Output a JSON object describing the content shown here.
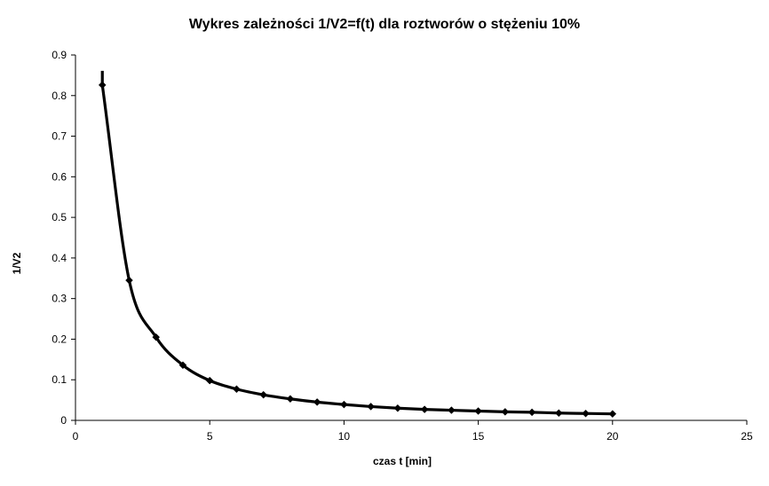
{
  "chart_data": {
    "type": "scatter",
    "title": "Wykres zależności 1/V2=f(t) dla roztworów o stężeniu 10%",
    "xlabel": "czas t [min]",
    "ylabel": "1/V2",
    "xlim": [
      0,
      25
    ],
    "ylim": [
      0,
      0.9
    ],
    "xticks": [
      "0",
      "5",
      "10",
      "15",
      "20",
      "25"
    ],
    "yticks": [
      "0",
      "0.1",
      "0.2",
      "0.3",
      "0.4",
      "0.5",
      "0.6",
      "0.7",
      "0.8",
      "0.9"
    ],
    "grid": false,
    "legend": "none",
    "series": [
      {
        "marker": "diamond",
        "line": "smooth",
        "color": "#000000",
        "x": [
          1,
          2,
          3,
          4,
          5,
          6,
          7,
          8,
          9,
          10,
          11,
          12,
          13,
          14,
          15,
          16,
          17,
          18,
          19,
          20
        ],
        "y": [
          0.826,
          0.345,
          0.205,
          0.136,
          0.098,
          0.077,
          0.063,
          0.053,
          0.045,
          0.039,
          0.034,
          0.03,
          0.027,
          0.025,
          0.023,
          0.021,
          0.02,
          0.018,
          0.017,
          0.016
        ]
      }
    ]
  }
}
